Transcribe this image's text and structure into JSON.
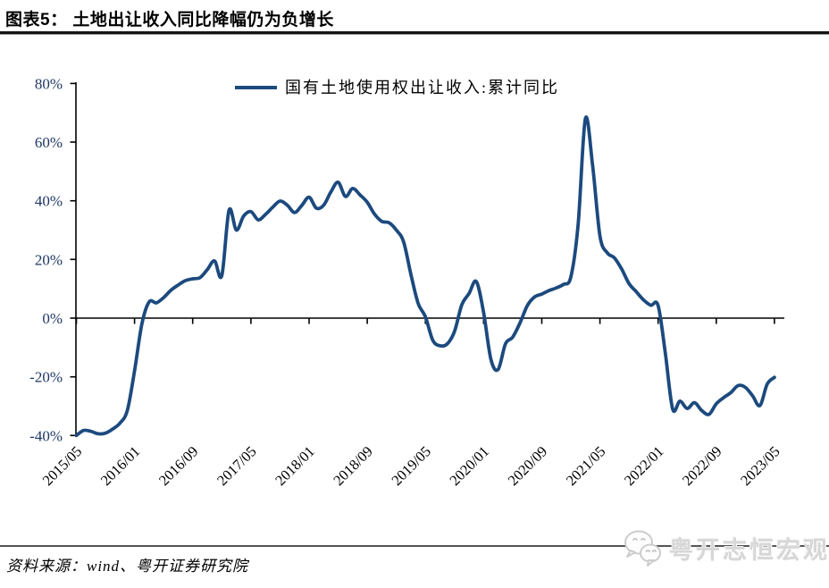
{
  "header": {
    "title": "图表5： 土地出让收入同比降幅仍为负增长"
  },
  "legend": {
    "label": "国有土地使用权出让收入:累计同比"
  },
  "footer": {
    "source": "资料来源：wind、粤开证券研究院",
    "watermark": "粤开志恒宏观",
    "watermark_icon": "wechat-chat-bubbles-icon"
  },
  "colors": {
    "line": "#1c4a7e",
    "y_tick_label": "#1f3864",
    "x_tick_label": "#000000",
    "axis": "#000000",
    "watermark_gray": "#d7d7d7"
  },
  "chart_data": {
    "type": "line",
    "title": "",
    "series_name": "国有土地使用权出让收入:累计同比",
    "legend_position": "top-center",
    "grid": false,
    "ylim": [
      -40,
      80
    ],
    "line_color": "#1c4a7e",
    "y_ticks": [
      {
        "value": 80,
        "label": "80%"
      },
      {
        "value": 60,
        "label": "60%"
      },
      {
        "value": 40,
        "label": "40%"
      },
      {
        "value": 20,
        "label": "20%"
      },
      {
        "value": 0,
        "label": "0%"
      },
      {
        "value": -20,
        "label": "-20%"
      },
      {
        "value": -40,
        "label": "-40%"
      }
    ],
    "x_tick_labels": [
      "2015/05",
      "2016/01",
      "2016/09",
      "2017/05",
      "2018/01",
      "2018/09",
      "2019/05",
      "2020/01",
      "2020/09",
      "2021/05",
      "2022/01",
      "2022/09",
      "2023/05"
    ],
    "x": [
      "2015/05",
      "2015/06",
      "2015/07",
      "2015/08",
      "2015/09",
      "2015/10",
      "2015/11",
      "2015/12",
      "2016/01",
      "2016/02",
      "2016/03",
      "2016/04",
      "2016/05",
      "2016/06",
      "2016/07",
      "2016/08",
      "2016/09",
      "2016/10",
      "2016/11",
      "2016/12",
      "2017/01",
      "2017/02",
      "2017/03",
      "2017/04",
      "2017/05",
      "2017/06",
      "2017/07",
      "2017/08",
      "2017/09",
      "2017/10",
      "2017/11",
      "2017/12",
      "2018/01",
      "2018/02",
      "2018/03",
      "2018/04",
      "2018/05",
      "2018/06",
      "2018/07",
      "2018/08",
      "2018/09",
      "2018/10",
      "2018/11",
      "2018/12",
      "2019/01",
      "2019/02",
      "2019/03",
      "2019/04",
      "2019/05",
      "2019/06",
      "2019/07",
      "2019/08",
      "2019/09",
      "2019/10",
      "2019/11",
      "2019/12",
      "2020/01",
      "2020/02",
      "2020/03",
      "2020/04",
      "2020/05",
      "2020/06",
      "2020/07",
      "2020/08",
      "2020/09",
      "2020/10",
      "2020/11",
      "2020/12",
      "2021/01",
      "2021/02",
      "2021/03",
      "2021/04",
      "2021/05",
      "2021/06",
      "2021/07",
      "2021/08",
      "2021/09",
      "2021/10",
      "2021/11",
      "2021/12",
      "2022/01",
      "2022/02",
      "2022/03",
      "2022/04",
      "2022/05",
      "2022/06",
      "2022/07",
      "2022/08",
      "2022/09",
      "2022/10",
      "2022/11",
      "2022/12",
      "2023/01",
      "2023/02",
      "2023/03",
      "2023/04",
      "2023/05"
    ],
    "values": [
      -40.0,
      -38.3,
      -38.6,
      -39.4,
      -39.2,
      -37.8,
      -35.8,
      -31.5,
      -18.0,
      -2.0,
      5.5,
      5.2,
      7.0,
      9.5,
      11.3,
      12.8,
      13.4,
      13.8,
      16.5,
      19.5,
      14.5,
      36.8,
      30.0,
      34.8,
      36.3,
      33.5,
      35.3,
      37.8,
      39.9,
      38.5,
      36.0,
      38.4,
      41.2,
      37.5,
      38.5,
      43.0,
      46.3,
      41.5,
      44.2,
      42.0,
      39.5,
      35.5,
      33.0,
      32.5,
      30.0,
      26.0,
      15.0,
      5.0,
      0.5,
      -7.5,
      -9.4,
      -8.8,
      -4.5,
      4.5,
      8.4,
      12.5,
      2.0,
      -14.0,
      -17.5,
      -8.8,
      -6.5,
      -1.7,
      4.2,
      7.2,
      8.2,
      9.4,
      10.3,
      11.5,
      14.0,
      32.0,
      68.0,
      52.0,
      28.0,
      22.3,
      20.5,
      16.7,
      11.8,
      9.0,
      6.2,
      4.4,
      4.3,
      -12.0,
      -31.0,
      -28.3,
      -30.8,
      -28.8,
      -31.5,
      -32.8,
      -29.2,
      -27.1,
      -25.4,
      -23.0,
      -23.6,
      -26.5,
      -29.8,
      -22.5,
      -20.2
    ]
  }
}
